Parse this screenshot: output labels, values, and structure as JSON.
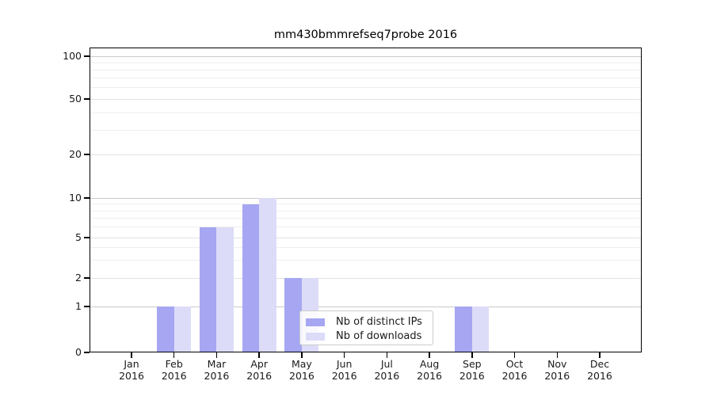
{
  "chart": {
    "title": "mm430bmmrefseq7probe 2016"
  },
  "chart_data": {
    "type": "bar",
    "title": "mm430bmmrefseq7probe 2016",
    "months": [
      "Jan",
      "Feb",
      "Mar",
      "Apr",
      "May",
      "Jun",
      "Jul",
      "Aug",
      "Sep",
      "Oct",
      "Nov",
      "Dec"
    ],
    "year": "2016",
    "categories": [
      "Jan 2016",
      "Feb 2016",
      "Mar 2016",
      "Apr 2016",
      "May 2016",
      "Jun 2016",
      "Jul 2016",
      "Aug 2016",
      "Sep 2016",
      "Oct 2016",
      "Nov 2016",
      "Dec 2016"
    ],
    "series": [
      {
        "name": "Nb of distinct IPs",
        "color": "#a6a6f2",
        "values": [
          0,
          1,
          6,
          9,
          2,
          0,
          0,
          0,
          1,
          0,
          0,
          0
        ]
      },
      {
        "name": "Nb of downloads",
        "color": "#dcdcf8",
        "values": [
          0,
          1,
          6,
          10,
          2,
          0,
          0,
          0,
          1,
          0,
          0,
          0
        ]
      }
    ],
    "yscale": "log-with-zero",
    "yticks": [
      0,
      1,
      2,
      5,
      10,
      20,
      50,
      100
    ],
    "ytick_labels": [
      "0",
      "1",
      "2",
      "5",
      "10",
      "20",
      "50",
      "100"
    ],
    "minor_yticks": [
      3,
      4,
      6,
      7,
      8,
      9,
      30,
      40,
      60,
      70,
      80,
      90
    ],
    "ylim": [
      0,
      115
    ],
    "grid": true,
    "legend_position": "lower-center",
    "background_color": "#ffffff",
    "decade_gridline_color": "#c9c9c9",
    "major_gridline_color": "#e2e2e2",
    "minor_gridline_color": "#efefef"
  }
}
